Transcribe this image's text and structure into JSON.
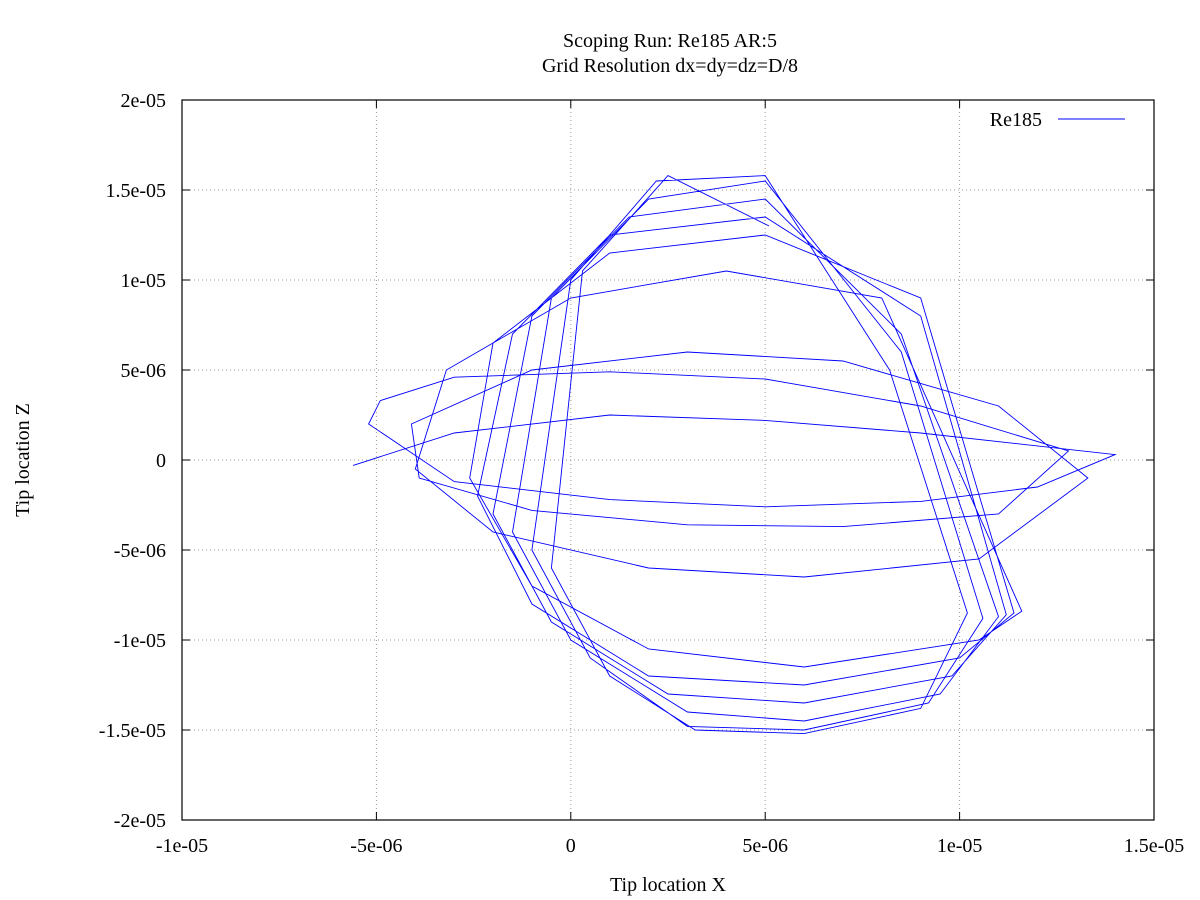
{
  "chart_data": {
    "type": "line",
    "title": "Scoping Run: Re185  AR:5",
    "subtitle": "Grid Resolution dx=dy=dz=D/8",
    "xlabel": "Tip location X",
    "ylabel": "Tip location Z",
    "xlim": [
      -1e-05,
      1.5e-05
    ],
    "ylim": [
      -2e-05,
      2e-05
    ],
    "x_ticks": [
      -1e-05,
      -5e-06,
      0,
      5e-06,
      1e-05,
      1.5e-05
    ],
    "y_ticks": [
      -2e-05,
      -1.5e-05,
      -1e-05,
      -5e-06,
      0,
      5e-06,
      1e-05,
      1.5e-05,
      2e-05
    ],
    "x_tick_labels": [
      "-1e-05",
      "-5e-06",
      "0",
      "5e-06",
      "1e-05",
      "1.5e-05"
    ],
    "y_tick_labels": [
      "-2e-05",
      "-1.5e-05",
      "-1e-05",
      "-5e-06",
      "0",
      "5e-06",
      "1e-05",
      "1.5e-05",
      "2e-05"
    ],
    "grid": true,
    "legend_position": "top-right",
    "series": [
      {
        "name": "Re185",
        "color": "#0000ff",
        "x": [
          -5.6e-06,
          -3e-06,
          1e-06,
          5e-06,
          9e-06,
          1.4e-05,
          1.2e-05,
          9e-06,
          5e-06,
          1e-06,
          -3e-06,
          -5.2e-06,
          -4.9e-06,
          -3e-06,
          1e-06,
          5e-06,
          9e-06,
          1.28e-05,
          1.1e-05,
          7e-06,
          3e-06,
          -1e-06,
          -3.9e-06,
          -4.1e-06,
          -1e-06,
          3e-06,
          7e-06,
          1.1e-05,
          1.33e-05,
          1.05e-05,
          6e-06,
          2e-06,
          -2e-06,
          -4e-06,
          -3.2e-06,
          0,
          4e-06,
          8e-06,
          1.16e-05,
          1.05e-05,
          6e-06,
          2e-06,
          -1e-06,
          -2.6e-06,
          -2e-06,
          1e-06,
          5e-06,
          9e-06,
          1.14e-05,
          1e-05,
          6e-06,
          2e-06,
          -1e-06,
          -2.4e-06,
          -1.5e-06,
          1e-06,
          5e-06,
          9e-06,
          1.12e-05,
          9.8e-06,
          6e-06,
          2.5e-06,
          -5e-07,
          -2e-06,
          -1e-06,
          1.5e-06,
          5e-06,
          8.5e-06,
          1.1e-05,
          9.5e-06,
          6e-06,
          3e-06,
          0,
          -1.5e-06,
          -5e-07,
          2e-06,
          5e-06,
          8.5e-06,
          1.06e-05,
          9.2e-06,
          6e-06,
          3e-06,
          5e-07,
          -1e-06,
          0,
          2.2e-06,
          5e-06,
          8.2e-06,
          1.02e-05,
          9e-06,
          6e-06,
          3.2e-06,
          1e-06,
          -5e-07,
          3e-07,
          2.5e-06,
          5.1e-06
        ],
        "y": [
          -3e-07,
          1.5e-06,
          2.5e-06,
          2.2e-06,
          1.5e-06,
          3e-07,
          -1.5e-06,
          -2.3e-06,
          -2.6e-06,
          -2.2e-06,
          -1.2e-06,
          2e-06,
          3.3e-06,
          4.6e-06,
          4.9e-06,
          4.5e-06,
          3e-06,
          5e-07,
          -3e-06,
          -3.7e-06,
          -3.6e-06,
          -2.8e-06,
          -1e-06,
          2e-06,
          5e-06,
          6e-06,
          5.5e-06,
          3e-06,
          -1e-06,
          -5.5e-06,
          -6.5e-06,
          -6e-06,
          -4e-06,
          -5e-07,
          5e-06,
          9e-06,
          1.05e-05,
          9e-06,
          -8.4e-06,
          -1e-05,
          -1.15e-05,
          -1.05e-05,
          -7e-06,
          -1e-06,
          6.5e-06,
          1.15e-05,
          1.25e-05,
          9e-06,
          -8.5e-06,
          -1.1e-05,
          -1.25e-05,
          -1.2e-05,
          -8e-06,
          -2e-06,
          7e-06,
          1.25e-05,
          1.35e-05,
          8e-06,
          -8.6e-06,
          -1.2e-05,
          -1.35e-05,
          -1.3e-05,
          -9e-06,
          -3e-06,
          8e-06,
          1.35e-05,
          1.45e-05,
          7e-06,
          -8.7e-06,
          -1.3e-05,
          -1.45e-05,
          -1.4e-05,
          -1e-05,
          -4e-06,
          9e-06,
          1.45e-05,
          1.55e-05,
          6e-06,
          -8.8e-06,
          -1.35e-05,
          -1.5e-05,
          -1.48e-05,
          -1.1e-05,
          -5e-06,
          1e-05,
          1.55e-05,
          1.58e-05,
          5e-06,
          -8.5e-06,
          -1.38e-05,
          -1.52e-05,
          -1.5e-05,
          -1.2e-05,
          -6e-06,
          1.05e-05,
          1.58e-05,
          1.3e-05
        ]
      }
    ]
  }
}
